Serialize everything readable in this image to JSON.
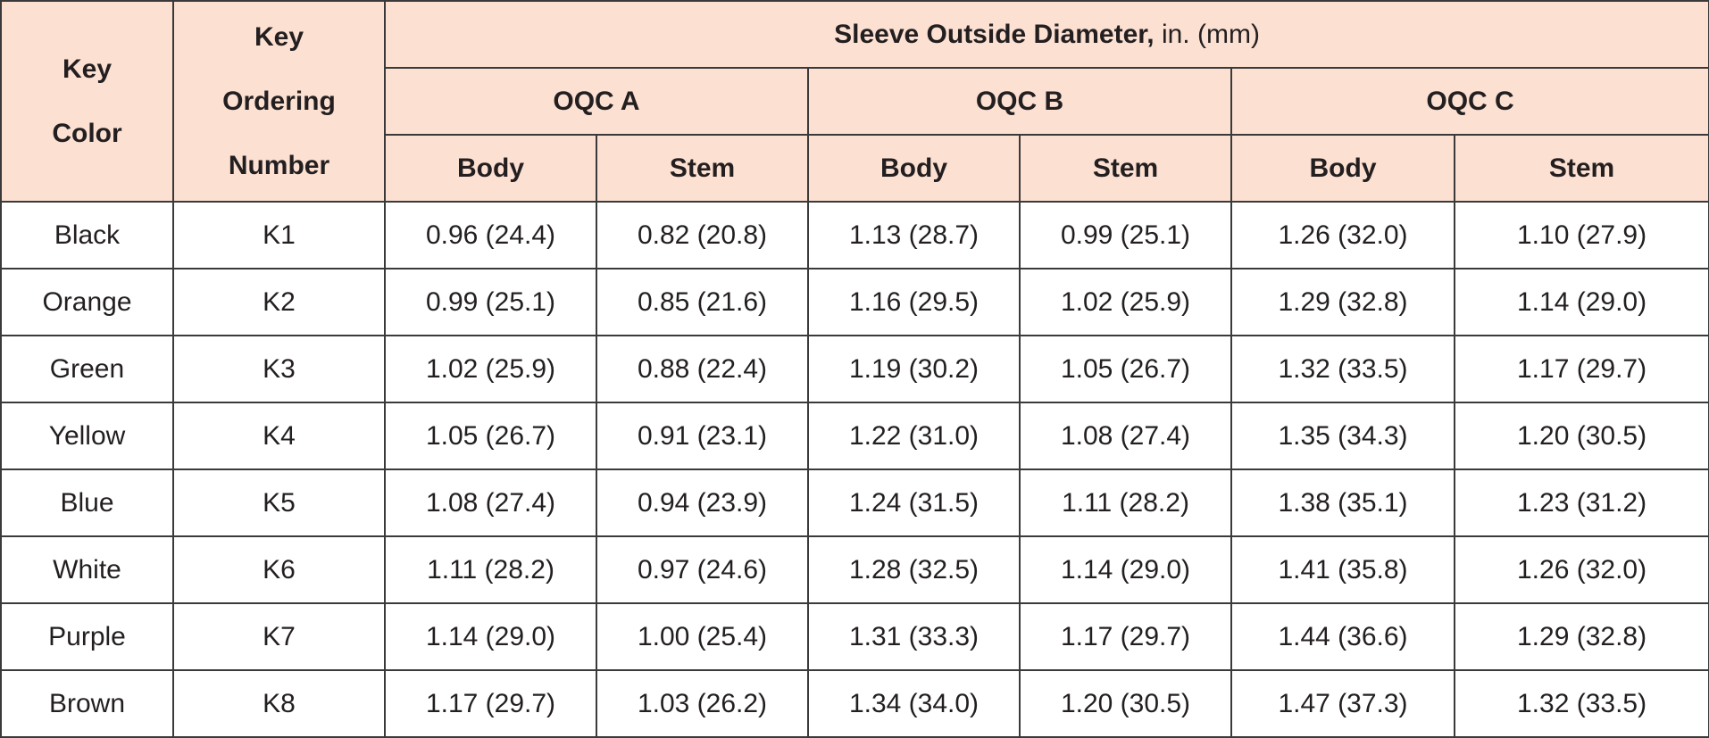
{
  "header": {
    "key_color": [
      "Key",
      "Color"
    ],
    "key_ordering_number": [
      "Key",
      "Ordering",
      "Number"
    ],
    "sleeve_title_bold": "Sleeve Outside Diameter,",
    "sleeve_title_unit": " in. (mm)",
    "groups": [
      "OQC A",
      "OQC B",
      "OQC C"
    ],
    "subcolumns": [
      "Body",
      "Stem",
      "Body",
      "Stem",
      "Body",
      "Stem"
    ]
  },
  "rows": [
    [
      "Black",
      "K1",
      "0.96 (24.4)",
      "0.82 (20.8)",
      "1.13 (28.7)",
      "0.99 (25.1)",
      "1.26 (32.0)",
      "1.10 (27.9)"
    ],
    [
      "Orange",
      "K2",
      "0.99 (25.1)",
      "0.85 (21.6)",
      "1.16 (29.5)",
      "1.02 (25.9)",
      "1.29 (32.8)",
      "1.14 (29.0)"
    ],
    [
      "Green",
      "K3",
      "1.02 (25.9)",
      "0.88 (22.4)",
      "1.19 (30.2)",
      "1.05 (26.7)",
      "1.32 (33.5)",
      "1.17 (29.7)"
    ],
    [
      "Yellow",
      "K4",
      "1.05 (26.7)",
      "0.91 (23.1)",
      "1.22 (31.0)",
      "1.08 (27.4)",
      "1.35 (34.3)",
      "1.20 (30.5)"
    ],
    [
      "Blue",
      "K5",
      "1.08 (27.4)",
      "0.94 (23.9)",
      "1.24 (31.5)",
      "1.11 (28.2)",
      "1.38 (35.1)",
      "1.23 (31.2)"
    ],
    [
      "White",
      "K6",
      "1.11 (28.2)",
      "0.97 (24.6)",
      "1.28 (32.5)",
      "1.14 (29.0)",
      "1.41 (35.8)",
      "1.26 (32.0)"
    ],
    [
      "Purple",
      "K7",
      "1.14 (29.0)",
      "1.00 (25.4)",
      "1.31 (33.3)",
      "1.17 (29.7)",
      "1.44 (36.6)",
      "1.29 (32.8)"
    ],
    [
      "Brown",
      "K8",
      "1.17 (29.7)",
      "1.03 (26.2)",
      "1.34 (34.0)",
      "1.20 (30.5)",
      "1.47 (37.3)",
      "1.32 (33.5)"
    ]
  ],
  "colors": {
    "header_background": "#fce0d2",
    "border": "#3a3a3a",
    "text": "#231f20"
  }
}
